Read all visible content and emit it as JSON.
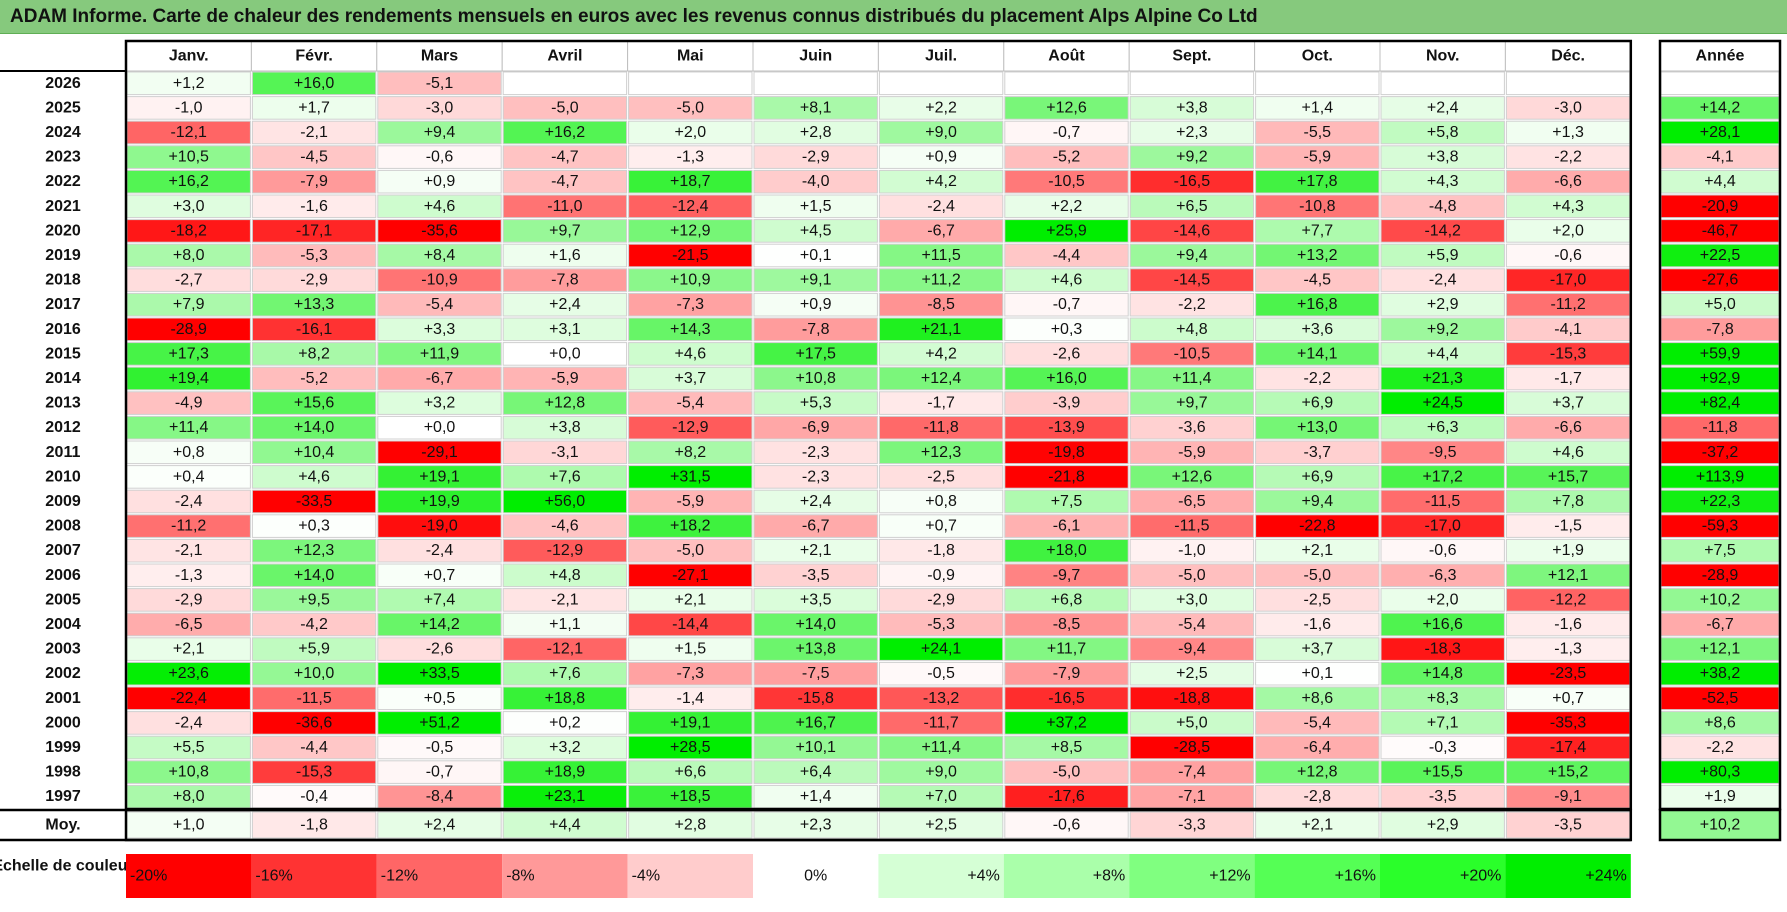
{
  "title": "ADAM Informe. Carte de chaleur des rendements mensuels en euros avec les revenus connus distribués du placement Alps Alpine Co Ltd",
  "chart_data": {
    "type": "heatmap",
    "title": "ADAM Informe. Carte de chaleur des rendements mensuels en euros avec les revenus connus distribués du placement Alps Alpine Co Ltd",
    "columns": [
      "Janv.",
      "Févr.",
      "Mars",
      "Avril",
      "Mai",
      "Juin",
      "Juil.",
      "Août",
      "Sept.",
      "Oct.",
      "Nov.",
      "Déc."
    ],
    "year_column": "Année",
    "rows": [
      {
        "year": "2026",
        "months": [
          "+1,2",
          "+16,0",
          "-5,1",
          "",
          "",
          "",
          "",
          "",
          "",
          "",
          "",
          ""
        ],
        "annual": ""
      },
      {
        "year": "2025",
        "months": [
          "-1,0",
          "+1,7",
          "-3,0",
          "-5,0",
          "-5,0",
          "+8,1",
          "+2,2",
          "+12,6",
          "+3,8",
          "+1,4",
          "+2,4",
          "-3,0"
        ],
        "annual": "+14,2"
      },
      {
        "year": "2024",
        "months": [
          "-12,1",
          "-2,1",
          "+9,4",
          "+16,2",
          "+2,0",
          "+2,8",
          "+9,0",
          "-0,7",
          "+2,3",
          "-5,5",
          "+5,8",
          "+1,3"
        ],
        "annual": "+28,1"
      },
      {
        "year": "2023",
        "months": [
          "+10,5",
          "-4,5",
          "-0,6",
          "-4,7",
          "-1,3",
          "-2,9",
          "+0,9",
          "-5,2",
          "+9,2",
          "-5,9",
          "+3,8",
          "-2,2"
        ],
        "annual": "-4,1"
      },
      {
        "year": "2022",
        "months": [
          "+16,2",
          "-7,9",
          "+0,9",
          "-4,7",
          "+18,7",
          "-4,0",
          "+4,2",
          "-10,5",
          "-16,5",
          "+17,8",
          "+4,3",
          "-6,6"
        ],
        "annual": "+4,4"
      },
      {
        "year": "2021",
        "months": [
          "+3,0",
          "-1,6",
          "+4,6",
          "-11,0",
          "-12,4",
          "+1,5",
          "-2,4",
          "+2,2",
          "+6,5",
          "-10,8",
          "-4,8",
          "+4,3"
        ],
        "annual": "-20,9"
      },
      {
        "year": "2020",
        "months": [
          "-18,2",
          "-17,1",
          "-35,6",
          "+9,7",
          "+12,9",
          "+4,5",
          "-6,7",
          "+25,9",
          "-14,6",
          "+7,7",
          "-14,2",
          "+2,0"
        ],
        "annual": "-46,7"
      },
      {
        "year": "2019",
        "months": [
          "+8,0",
          "-5,3",
          "+8,4",
          "+1,6",
          "-21,5",
          "+0,1",
          "+11,5",
          "-4,4",
          "+9,4",
          "+13,2",
          "+5,9",
          "-0,6"
        ],
        "annual": "+22,5"
      },
      {
        "year": "2018",
        "months": [
          "-2,7",
          "-2,9",
          "-10,9",
          "-7,8",
          "+10,9",
          "+9,1",
          "+11,2",
          "+4,6",
          "-14,5",
          "-4,5",
          "-2,4",
          "-17,0"
        ],
        "annual": "-27,6"
      },
      {
        "year": "2017",
        "months": [
          "+7,9",
          "+13,3",
          "-5,4",
          "+2,4",
          "-7,3",
          "+0,9",
          "-8,5",
          "-0,7",
          "-2,2",
          "+16,8",
          "+2,9",
          "-11,2"
        ],
        "annual": "+5,0"
      },
      {
        "year": "2016",
        "months": [
          "-28,9",
          "-16,1",
          "+3,3",
          "+3,1",
          "+14,3",
          "-7,8",
          "+21,1",
          "+0,3",
          "+4,8",
          "+3,6",
          "+9,2",
          "-4,1"
        ],
        "annual": "-7,8"
      },
      {
        "year": "2015",
        "months": [
          "+17,3",
          "+8,2",
          "+11,9",
          "+0,0",
          "+4,6",
          "+17,5",
          "+4,2",
          "-2,6",
          "-10,5",
          "+14,1",
          "+4,4",
          "-15,3"
        ],
        "annual": "+59,9"
      },
      {
        "year": "2014",
        "months": [
          "+19,4",
          "-5,2",
          "-6,7",
          "-5,9",
          "+3,7",
          "+10,8",
          "+12,4",
          "+16,0",
          "+11,4",
          "-2,2",
          "+21,3",
          "-1,7"
        ],
        "annual": "+92,9"
      },
      {
        "year": "2013",
        "months": [
          "-4,9",
          "+15,6",
          "+3,2",
          "+12,8",
          "-5,4",
          "+5,3",
          "-1,7",
          "-3,9",
          "+9,7",
          "+6,9",
          "+24,5",
          "+3,7"
        ],
        "annual": "+82,4"
      },
      {
        "year": "2012",
        "months": [
          "+11,4",
          "+14,0",
          "+0,0",
          "+3,8",
          "-12,9",
          "-6,9",
          "-11,8",
          "-13,9",
          "-3,6",
          "+13,0",
          "+6,3",
          "-6,6"
        ],
        "annual": "-11,8"
      },
      {
        "year": "2011",
        "months": [
          "+0,8",
          "+10,4",
          "-29,1",
          "-3,1",
          "+8,2",
          "-2,3",
          "+12,3",
          "-19,8",
          "-5,9",
          "-3,7",
          "-9,5",
          "+4,6"
        ],
        "annual": "-37,2"
      },
      {
        "year": "2010",
        "months": [
          "+0,4",
          "+4,6",
          "+19,1",
          "+7,6",
          "+31,5",
          "-2,3",
          "-2,5",
          "-21,8",
          "+12,6",
          "+6,9",
          "+17,2",
          "+15,7"
        ],
        "annual": "+113,9"
      },
      {
        "year": "2009",
        "months": [
          "-2,4",
          "-33,5",
          "+19,9",
          "+56,0",
          "-5,9",
          "+2,4",
          "+0,8",
          "+7,5",
          "-6,5",
          "+9,4",
          "-11,5",
          "+7,8"
        ],
        "annual": "+22,3"
      },
      {
        "year": "2008",
        "months": [
          "-11,2",
          "+0,3",
          "-19,0",
          "-4,6",
          "+18,2",
          "-6,7",
          "+0,7",
          "-6,1",
          "-11,5",
          "-22,8",
          "-17,0",
          "-1,5"
        ],
        "annual": "-59,3"
      },
      {
        "year": "2007",
        "months": [
          "-2,1",
          "+12,3",
          "-2,4",
          "-12,9",
          "-5,0",
          "+2,1",
          "-1,8",
          "+18,0",
          "-1,0",
          "+2,1",
          "-0,6",
          "+1,9"
        ],
        "annual": "+7,5"
      },
      {
        "year": "2006",
        "months": [
          "-1,3",
          "+14,0",
          "+0,7",
          "+4,8",
          "-27,1",
          "-3,5",
          "-0,9",
          "-9,7",
          "-5,0",
          "-5,0",
          "-6,3",
          "+12,1"
        ],
        "annual": "-28,9"
      },
      {
        "year": "2005",
        "months": [
          "-2,9",
          "+9,5",
          "+7,4",
          "-2,1",
          "+2,1",
          "+3,5",
          "-2,9",
          "+6,8",
          "+3,0",
          "-2,5",
          "+2,0",
          "-12,2"
        ],
        "annual": "+10,2"
      },
      {
        "year": "2004",
        "months": [
          "-6,5",
          "-4,2",
          "+14,2",
          "+1,1",
          "-14,4",
          "+14,0",
          "-5,3",
          "-8,5",
          "-5,4",
          "-1,6",
          "+16,6",
          "-1,6"
        ],
        "annual": "-6,7"
      },
      {
        "year": "2003",
        "months": [
          "+2,1",
          "+5,9",
          "-2,6",
          "-12,1",
          "+1,5",
          "+13,8",
          "+24,1",
          "+11,7",
          "-9,4",
          "+3,7",
          "-18,3",
          "-1,3"
        ],
        "annual": "+12,1"
      },
      {
        "year": "2002",
        "months": [
          "+23,6",
          "+10,0",
          "+33,5",
          "+7,6",
          "-7,3",
          "-7,5",
          "-0,5",
          "-7,9",
          "+2,5",
          "+0,1",
          "+14,8",
          "-23,5"
        ],
        "annual": "+38,2"
      },
      {
        "year": "2001",
        "months": [
          "-22,4",
          "-11,5",
          "+0,5",
          "+18,8",
          "-1,4",
          "-15,8",
          "-13,2",
          "-16,5",
          "-18,8",
          "+8,6",
          "+8,3",
          "+0,7"
        ],
        "annual": "-52,5"
      },
      {
        "year": "2000",
        "months": [
          "-2,4",
          "-36,6",
          "+51,2",
          "+0,2",
          "+19,1",
          "+16,7",
          "-11,7",
          "+37,2",
          "+5,0",
          "-5,4",
          "+7,1",
          "-35,3"
        ],
        "annual": "+8,6"
      },
      {
        "year": "1999",
        "months": [
          "+5,5",
          "-4,4",
          "-0,5",
          "+3,2",
          "+28,5",
          "+10,1",
          "+11,4",
          "+8,5",
          "-28,5",
          "-6,4",
          "-0,3",
          "-17,4"
        ],
        "annual": "-2,2"
      },
      {
        "year": "1998",
        "months": [
          "+10,8",
          "-15,3",
          "-0,7",
          "+18,9",
          "+6,6",
          "+6,4",
          "+9,0",
          "-5,0",
          "-7,4",
          "+12,8",
          "+15,5",
          "+15,2"
        ],
        "annual": "+80,3"
      },
      {
        "year": "1997",
        "months": [
          "+8,0",
          "-0,4",
          "-8,4",
          "+23,1",
          "+18,5",
          "+1,4",
          "+7,0",
          "-17,6",
          "-7,1",
          "-2,8",
          "-3,5",
          "-9,1"
        ],
        "annual": "+1,9"
      }
    ],
    "average_row": {
      "label": "Moy.",
      "months": [
        "+1,0",
        "-1,8",
        "+2,4",
        "+4,4",
        "+2,8",
        "+2,3",
        "+2,5",
        "-0,6",
        "-3,3",
        "+2,1",
        "+2,9",
        "-3,5"
      ],
      "annual": "+10,2"
    },
    "scale": {
      "label": "Echelle de couleur",
      "stops": [
        {
          "label": "-20%",
          "value": -20,
          "color": "#ff0000"
        },
        {
          "label": "-16%",
          "value": -16,
          "color": "#ff3333"
        },
        {
          "label": "-12%",
          "value": -12,
          "color": "#ff6666"
        },
        {
          "label": "-8%",
          "value": -8,
          "color": "#ff9999"
        },
        {
          "label": "-4%",
          "value": -4,
          "color": "#ffcccc"
        },
        {
          "label": "0%",
          "value": 0,
          "color": "#ffffff"
        },
        {
          "label": "+4%",
          "value": 4,
          "color": "#d5ffd5"
        },
        {
          "label": "+8%",
          "value": 8,
          "color": "#aaffaa"
        },
        {
          "label": "+12%",
          "value": 12,
          "color": "#80ff80"
        },
        {
          "label": "+16%",
          "value": 16,
          "color": "#55ff55"
        },
        {
          "label": "+20%",
          "value": 20,
          "color": "#2aff2a"
        },
        {
          "label": "+24%",
          "value": 24,
          "color": "#00ee00"
        }
      ]
    },
    "colors": {
      "negative_max": "#ff0000",
      "neutral": "#ffffff",
      "positive_max": "#00ee00",
      "title_band": "#86c97d"
    }
  }
}
